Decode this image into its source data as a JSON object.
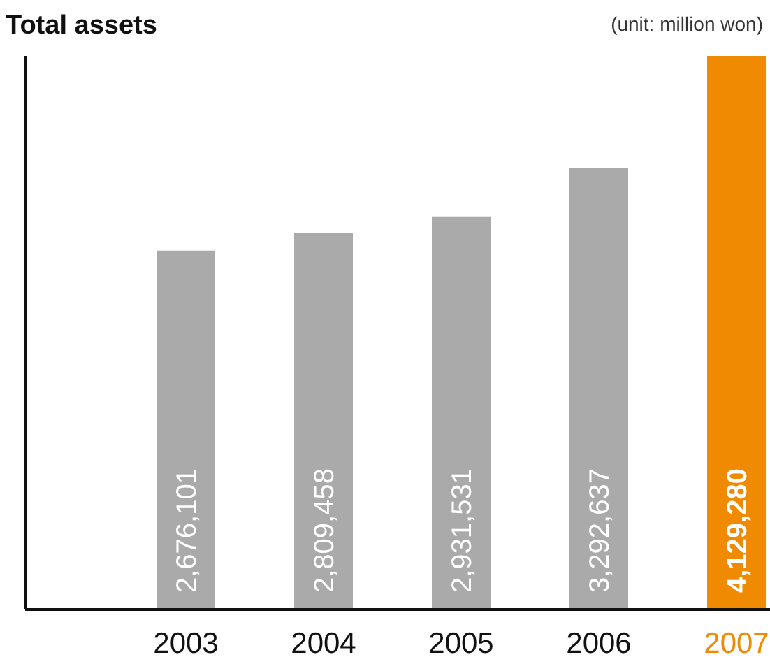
{
  "chart_data": {
    "type": "bar",
    "title": "Total assets",
    "annotations": [
      "(unit: million won)"
    ],
    "categories": [
      "2003",
      "2004",
      "2005",
      "2006",
      "2007"
    ],
    "values": [
      2676101,
      2809458,
      2931531,
      3292637,
      4129280
    ],
    "colors": [
      "#aaaaaa",
      "#aaaaaa",
      "#aaaaaa",
      "#aaaaaa",
      "#f08a00"
    ],
    "ylim": [
      0,
      4129280
    ],
    "value_labels": [
      "2,676,101",
      "2,809,458",
      "2,931,531",
      "3,292,637",
      "4,129,280"
    ]
  }
}
